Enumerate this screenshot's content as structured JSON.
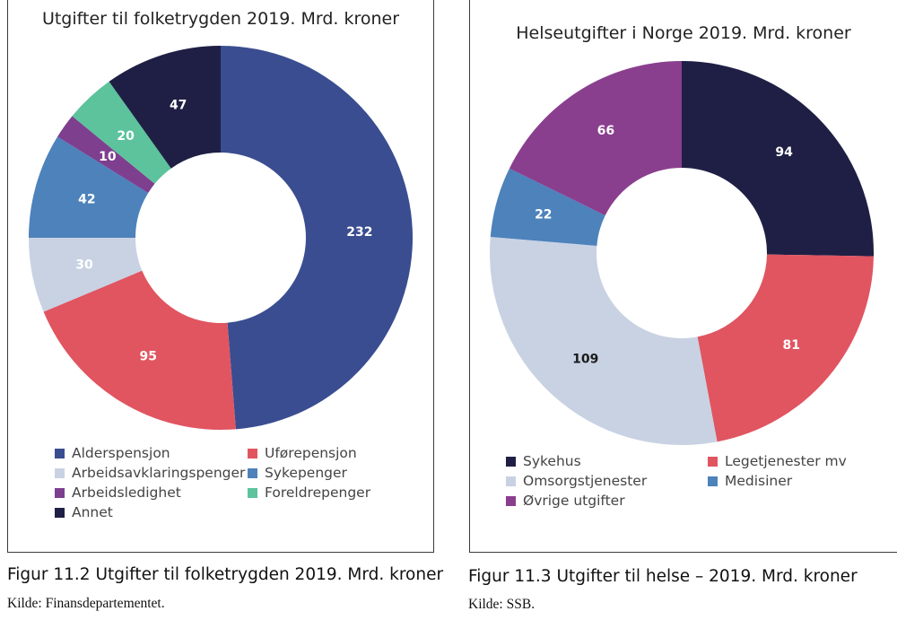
{
  "chart_data": [
    {
      "type": "pie",
      "donut": true,
      "title": "Utgifter til folketrygden 2019. Mrd. kroner",
      "categories": [
        "Alderspensjon",
        "Uførepensjon",
        "Arbeidsavklaringspenger",
        "Sykepenger",
        "Arbeidsledighet",
        "Foreldrepenger",
        "Annet"
      ],
      "values": [
        232,
        95,
        30,
        42,
        10,
        20,
        47
      ],
      "colors": [
        "#3a4d91",
        "#e05560",
        "#c8d2e3",
        "#4d82bb",
        "#7e3f8f",
        "#5cc39c",
        "#1f1f45"
      ],
      "label_colors": [
        "#ffffff",
        "#ffffff",
        "#ffffff",
        "#ffffff",
        "#ffffff",
        "#ffffff",
        "#ffffff"
      ],
      "legend_position": "bottom"
    },
    {
      "type": "pie",
      "donut": true,
      "title": "Helseutgifter i Norge 2019. Mrd. kroner",
      "categories": [
        "Sykehus",
        "Legetjenester mv",
        "Omsorgstjenester",
        "Medisiner",
        "Øvrige utgifter"
      ],
      "values": [
        94,
        81,
        109,
        22,
        66
      ],
      "colors": [
        "#1f1f45",
        "#e05560",
        "#c8d2e3",
        "#4d82bb",
        "#8a3f8e"
      ],
      "label_colors": [
        "#ffffff",
        "#ffffff",
        "#1a1a1a",
        "#ffffff",
        "#ffffff"
      ],
      "legend_position": "bottom"
    }
  ],
  "captions": {
    "left": {
      "figure": "Figur 11.2  Utgifter til folketrygden 2019. Mrd. kroner",
      "source": "Kilde: Finansdepartementet."
    },
    "right": {
      "figure": "Figur 11.3  Utgifter til helse – 2019. Mrd. kroner",
      "source": "Kilde: SSB."
    }
  }
}
